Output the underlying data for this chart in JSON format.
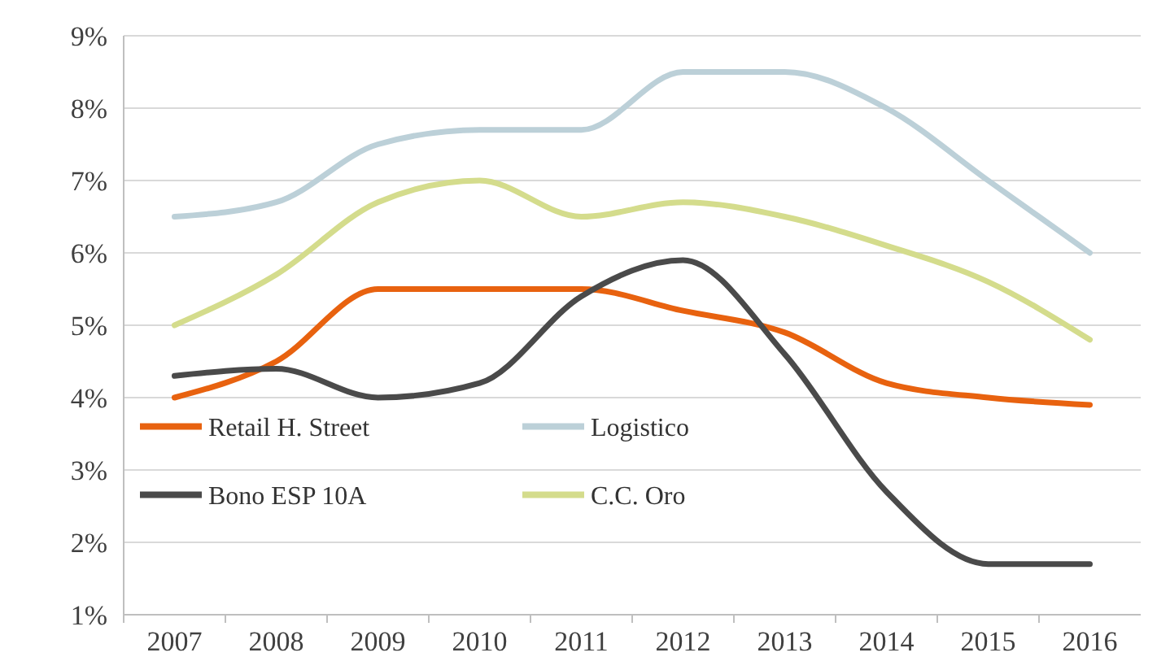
{
  "chart_data": {
    "type": "line",
    "categories": [
      "2007",
      "2008",
      "2009",
      "2010",
      "2011",
      "2012",
      "2013",
      "2014",
      "2015",
      "2016"
    ],
    "series": [
      {
        "name": "Retail H. Street",
        "color": "#e8620f",
        "values": [
          4.0,
          4.5,
          5.5,
          5.5,
          5.5,
          5.2,
          4.9,
          4.2,
          4.0,
          3.9
        ]
      },
      {
        "name": "Logistico",
        "color": "#bcd0d8",
        "values": [
          6.5,
          6.7,
          7.5,
          7.7,
          7.7,
          8.5,
          8.5,
          8.0,
          7.0,
          6.0
        ]
      },
      {
        "name": "Bono ESP 10A",
        "color": "#4a4a4a",
        "values": [
          4.3,
          4.4,
          4.0,
          4.2,
          5.4,
          5.9,
          4.6,
          2.7,
          1.7,
          1.7
        ]
      },
      {
        "name": "C.C. Oro",
        "color": "#d4dc8c",
        "values": [
          5.0,
          5.7,
          6.7,
          7.0,
          6.5,
          6.7,
          6.5,
          6.1,
          5.6,
          4.8
        ]
      }
    ],
    "ylim": [
      1,
      9
    ],
    "yticks": [
      {
        "value": 1,
        "label": "1%"
      },
      {
        "value": 2,
        "label": "2%"
      },
      {
        "value": 3,
        "label": "3%"
      },
      {
        "value": 4,
        "label": "4%"
      },
      {
        "value": 5,
        "label": "5%"
      },
      {
        "value": 6,
        "label": "6%"
      },
      {
        "value": 7,
        "label": "7%"
      },
      {
        "value": 8,
        "label": "8%"
      },
      {
        "value": 9,
        "label": "9%"
      }
    ],
    "grid": "y",
    "legend": "bottom left",
    "marker": "none",
    "line_style": "solid"
  }
}
